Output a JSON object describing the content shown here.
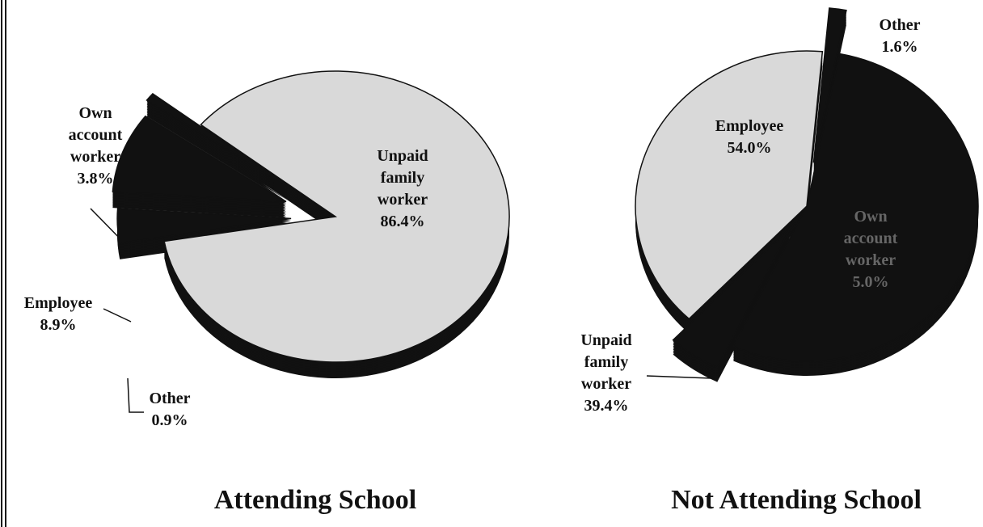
{
  "chart_data": [
    {
      "type": "pie",
      "title": "Attending School",
      "categories": [
        "Unpaid family worker",
        "Own account worker",
        "Employee",
        "Other"
      ],
      "values": [
        86.4,
        3.8,
        8.9,
        0.9
      ],
      "value_labels": [
        "86.4%",
        "3.8%",
        "8.9%",
        "0.9%"
      ],
      "colors": [
        "#d9d9d9",
        "#111111",
        "#111111",
        "#111111"
      ]
    },
    {
      "type": "pie",
      "title": "Not Attending School",
      "categories": [
        "Employee",
        "Own account worker",
        "Unpaid family worker",
        "Other"
      ],
      "values": [
        54.0,
        5.0,
        39.4,
        1.6
      ],
      "value_labels": [
        "54.0%",
        "5.0%",
        "39.4%",
        "1.6%"
      ],
      "colors": [
        "#111111",
        "#111111",
        "#d9d9d9",
        "#111111"
      ]
    }
  ]
}
